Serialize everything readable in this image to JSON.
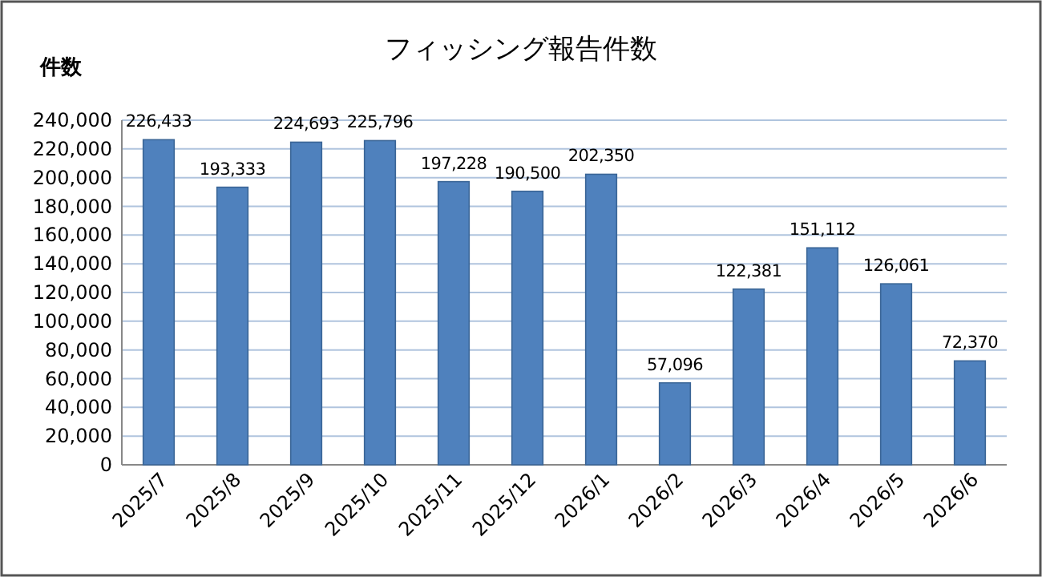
{
  "chart_data": {
    "type": "bar",
    "title": "フィッシング報告件数",
    "ylabel": "件数",
    "categories": [
      "2025/7",
      "2025/8",
      "2025/9",
      "2025/10",
      "2025/11",
      "2025/12",
      "2026/1",
      "2026/2",
      "2026/3",
      "2026/4",
      "2026/5",
      "2026/6"
    ],
    "values": [
      226433,
      193333,
      224693,
      225796,
      197228,
      190500,
      202350,
      57096,
      122381,
      151112,
      126061,
      72370
    ],
    "value_labels": [
      "226,433",
      "193,333",
      "224,693",
      "225,796",
      "197,228",
      "190,500",
      "202,350",
      "57,096",
      "122,381",
      "151,112",
      "126,061",
      "72,370"
    ],
    "color": "#4f81bd",
    "ylim": [
      0,
      240000
    ],
    "yticks": [
      {
        "value": 0,
        "label": "0"
      },
      {
        "value": 20000,
        "label": "20,000"
      },
      {
        "value": 40000,
        "label": "40,000"
      },
      {
        "value": 60000,
        "label": "60,000"
      },
      {
        "value": 80000,
        "label": "80,000"
      },
      {
        "value": 100000,
        "label": "100,000"
      },
      {
        "value": 120000,
        "label": "120,000"
      },
      {
        "value": 140000,
        "label": "140,000"
      },
      {
        "value": 160000,
        "label": "160,000"
      },
      {
        "value": 180000,
        "label": "180,000"
      },
      {
        "value": 200000,
        "label": "200,000"
      },
      {
        "value": 220000,
        "label": "220,000"
      },
      {
        "value": 240000,
        "label": "240,000"
      }
    ],
    "grid": "y"
  }
}
